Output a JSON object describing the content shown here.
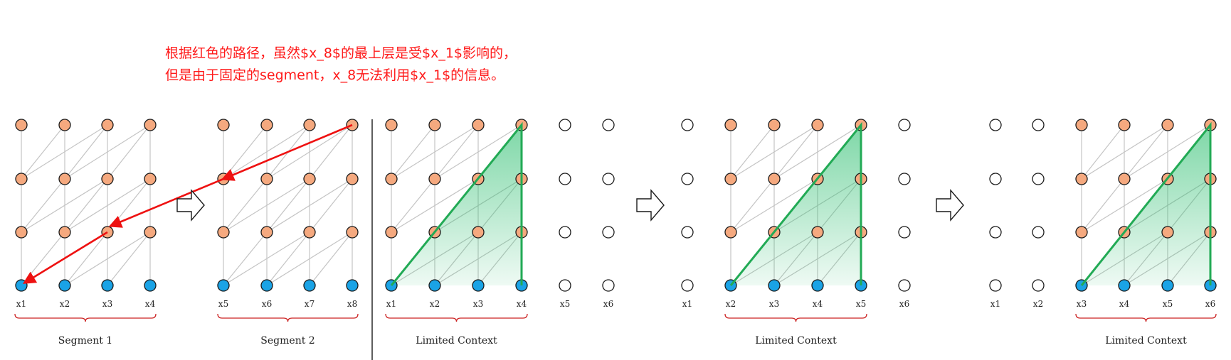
{
  "annotation": {
    "line1": "根据红色的路径，虽然$x_8$的最上层是受$x_1$影响的，",
    "line2": "但是由于固定的segment，x_8无法利用$x_1$的信息。"
  },
  "colors": {
    "hidden_node": "#f5a97f",
    "input_node": "#1aa3e6",
    "empty_node": "#ffffff",
    "edge": "#c4c4c4",
    "red_path": "#ee1111",
    "context_border": "#22aa55",
    "brace": "#cc2222"
  },
  "panels": [
    {
      "name": "segment-1",
      "labels": [
        "x1",
        "x2",
        "x3",
        "x4"
      ],
      "group_label": "Segment 1"
    },
    {
      "name": "segment-2",
      "labels": [
        "x5",
        "x6",
        "x7",
        "x8"
      ],
      "group_label": "Segment 2"
    },
    {
      "name": "context-1",
      "labels": [
        "x1",
        "x2",
        "x3",
        "x4",
        "x5",
        "x6"
      ],
      "group_label": "Limited Context"
    },
    {
      "name": "context-2",
      "labels": [
        "x1",
        "x2",
        "x3",
        "x4",
        "x5",
        "x6"
      ],
      "group_label": "Limited Context"
    },
    {
      "name": "context-3",
      "labels": [
        "x1",
        "x2",
        "x3",
        "x4",
        "x5",
        "x6"
      ],
      "group_label": "Limited Context"
    }
  ],
  "icons": [
    "arrow-right-icon",
    "arrow-right-icon",
    "arrow-right-icon"
  ]
}
